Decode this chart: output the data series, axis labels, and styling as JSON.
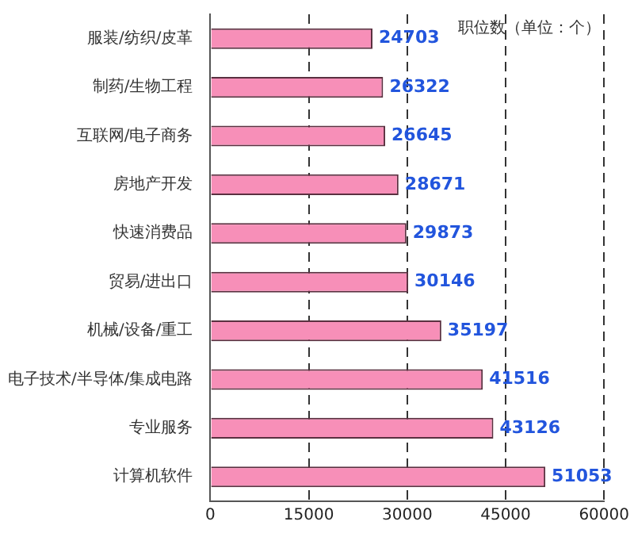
{
  "chart_data": {
    "type": "bar",
    "orientation": "horizontal",
    "categories": [
      "服装/纺织/皮革",
      "制药/生物工程",
      "互联网/电子商务",
      "房地产开发",
      "快速消费品",
      "贸易/进出口",
      "机械/设备/重工",
      "电子技术/半导体/集成电路",
      "专业服务",
      "计算机软件"
    ],
    "values": [
      24703,
      26322,
      26645,
      28671,
      29873,
      30146,
      35197,
      41516,
      43126,
      51053
    ],
    "color": "#f78fb8",
    "xlim": [
      0,
      60000
    ],
    "xticks": [
      0,
      15000,
      30000,
      45000,
      60000
    ],
    "grid": "x",
    "data_labels": true,
    "legend": false,
    "annotations": [
      "职位数（单位：个）"
    ]
  }
}
